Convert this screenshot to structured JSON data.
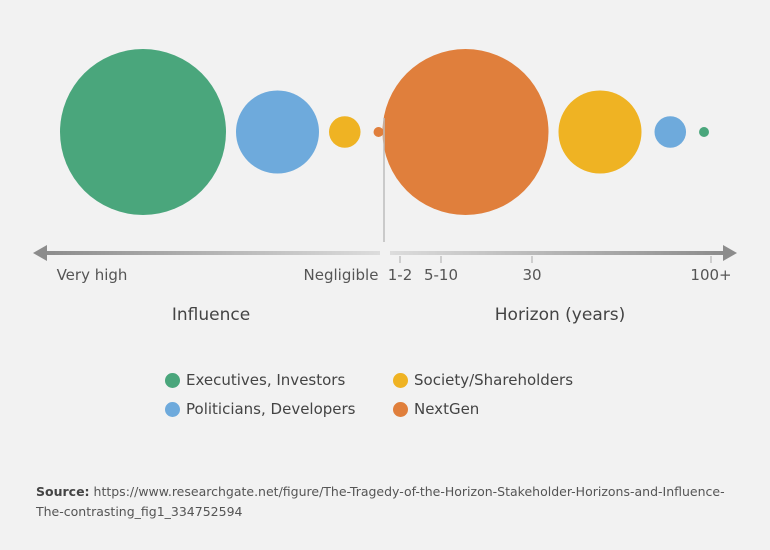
{
  "chart_data": {
    "type": "bubble",
    "colors": {
      "Executives, Investors": "#4aa67c",
      "Politicians, Developers": "#6eaadc",
      "Society/Shareholders": "#efb323",
      "NextGen": "#e07f3c"
    },
    "influence": {
      "axis_label": "Influence",
      "tick_labels": [
        "Very high",
        "Negligible"
      ],
      "bubbles": [
        {
          "group": "Executives, Investors",
          "relative_size": 1.0
        },
        {
          "group": "Politicians, Developers",
          "relative_size": 0.5
        },
        {
          "group": "Society/Shareholders",
          "relative_size": 0.19
        },
        {
          "group": "NextGen",
          "relative_size": 0.06
        }
      ]
    },
    "horizon": {
      "axis_label": "Horizon (years)",
      "tick_labels": [
        "1-2",
        "5-10",
        "30",
        "100+"
      ],
      "bubbles": [
        {
          "group": "Executives, Investors",
          "relative_size": 0.06
        },
        {
          "group": "Politicians, Developers",
          "relative_size": 0.19
        },
        {
          "group": "Society/Shareholders",
          "relative_size": 0.5
        },
        {
          "group": "NextGen",
          "relative_size": 1.0
        }
      ]
    },
    "legend": [
      "Executives, Investors",
      "Politicians, Developers",
      "Society/Shareholders",
      "NextGen"
    ]
  },
  "source": {
    "label": "Source:",
    "text": " https://www.researchgate.net/figure/The-Tragedy-of-the-Horizon-Stakeholder-Horizons-and-Influence-The-contrasting_fig1_334752594"
  }
}
